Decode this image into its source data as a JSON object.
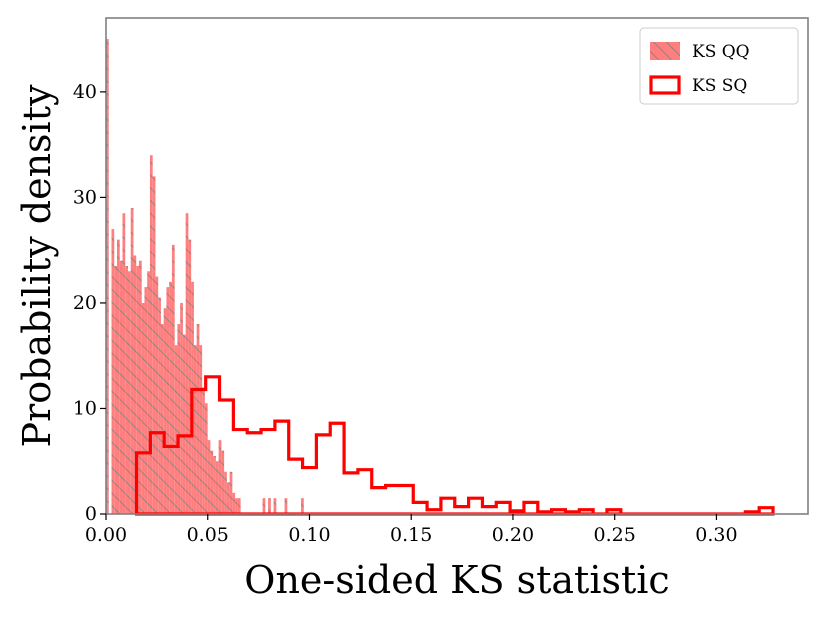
{
  "chart_data": {
    "type": "histogram",
    "xlabel": "One-sided KS statistic",
    "ylabel": "Probability density",
    "xlim": [
      0.0,
      0.345
    ],
    "ylim": [
      0,
      47
    ],
    "x_ticks": [
      "0.00",
      "0.05",
      "0.10",
      "0.15",
      "0.20",
      "0.25",
      "0.30"
    ],
    "x_tick_values": [
      0.0,
      0.05,
      0.1,
      0.15,
      0.2,
      0.25,
      0.3
    ],
    "y_ticks": [
      "0",
      "10",
      "20",
      "30",
      "40"
    ],
    "y_tick_values": [
      0,
      10,
      20,
      30,
      40
    ],
    "legend": [
      {
        "label": "KS QQ",
        "style": "filled-hatched"
      },
      {
        "label": "KS SQ",
        "style": "step-outline"
      }
    ],
    "series": [
      {
        "name": "KS QQ",
        "bin_width": 0.00135,
        "x_start": 0.0,
        "color": "#ff7f7f",
        "hatch_color": "#7f7f7f",
        "values": [
          45,
          0,
          27,
          23.5,
          26,
          24,
          28.5,
          23.5,
          23,
          29,
          24.5,
          23.5,
          24,
          20,
          21.5,
          23,
          34,
          32,
          22.5,
          20.5,
          18,
          19.5,
          21.5,
          22,
          25.5,
          16,
          18,
          20,
          17,
          28.5,
          26,
          22,
          16,
          18,
          16,
          12,
          10.5,
          7,
          6,
          5.5,
          5,
          7,
          6,
          4,
          3,
          4,
          2,
          1.5,
          1.5,
          0,
          0,
          0,
          0,
          0,
          0,
          0,
          0,
          1.5,
          0,
          1.5,
          0,
          1.5,
          0,
          0,
          0,
          1.5,
          0,
          0,
          0,
          0,
          0,
          1.5,
          0,
          0,
          0
        ]
      },
      {
        "name": "KS SQ",
        "color": "#ff0000",
        "bin_edges": [
          0.015,
          0.0218,
          0.0286,
          0.0354,
          0.0422,
          0.049,
          0.0558,
          0.0626,
          0.0694,
          0.0762,
          0.083,
          0.0898,
          0.0966,
          0.1034,
          0.1102,
          0.117,
          0.1238,
          0.1306,
          0.1374,
          0.1442,
          0.151,
          0.1578,
          0.1646,
          0.1714,
          0.1782,
          0.185,
          0.1918,
          0.1986,
          0.2054,
          0.2122,
          0.219,
          0.2258,
          0.2326,
          0.2394,
          0.2462,
          0.253,
          0.2598,
          0.2666,
          0.2734,
          0.2802,
          0.287,
          0.2938,
          0.3006,
          0.3074,
          0.3142,
          0.321,
          0.3278
        ],
        "values": [
          5.8,
          7.7,
          6.4,
          7.4,
          11.8,
          13.0,
          10.8,
          8.0,
          7.7,
          8.0,
          8.8,
          5.2,
          4.4,
          7.5,
          8.6,
          3.9,
          4.2,
          2.5,
          2.7,
          2.7,
          1.1,
          0.4,
          1.5,
          0.7,
          1.5,
          0.7,
          1.1,
          0.3,
          1.1,
          0.2,
          0.4,
          0.2,
          0.4,
          0.0,
          0.4,
          0.0,
          0.0,
          0.0,
          0.0,
          0.0,
          0.0,
          0.0,
          0.0,
          0.0,
          0.2,
          0.6
        ]
      }
    ]
  }
}
